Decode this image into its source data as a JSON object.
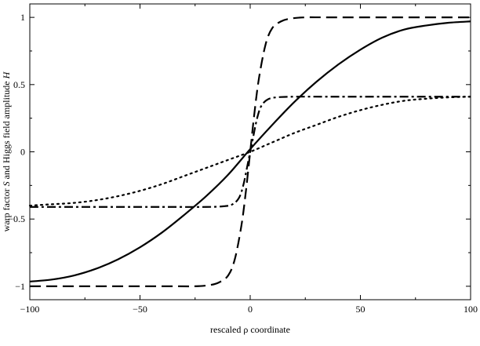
{
  "chart_data": {
    "type": "line",
    "title": "",
    "xlabel": "rescaled ρ coordinate",
    "ylabel_parts": [
      "warp factor ",
      "S",
      " and Higgs field amplitude ",
      "H"
    ],
    "xlim": [
      -100,
      100
    ],
    "ylim": [
      -1.1,
      1.1
    ],
    "x_ticks": [
      -100,
      -50,
      0,
      50,
      100
    ],
    "x_tick_labels": [
      "−100",
      "−50",
      "0",
      "50",
      "100"
    ],
    "y_ticks": [
      -1,
      -0.5,
      0,
      0.5,
      1
    ],
    "y_tick_labels": [
      "−1",
      "−0.5",
      "0",
      "0.5",
      "1"
    ],
    "grid": false,
    "legend": "none",
    "series": [
      {
        "style": "solid",
        "color": "#000000",
        "x": [
          -100,
          -90,
          -80,
          -70,
          -60,
          -50,
          -40,
          -30,
          -20,
          -10,
          0,
          10,
          20,
          30,
          40,
          50,
          60,
          70,
          80,
          90,
          100
        ],
        "y": [
          -0.965,
          -0.95,
          -0.92,
          -0.87,
          -0.8,
          -0.71,
          -0.6,
          -0.47,
          -0.33,
          -0.17,
          0.02,
          0.2,
          0.37,
          0.52,
          0.65,
          0.76,
          0.85,
          0.91,
          0.94,
          0.96,
          0.97
        ]
      },
      {
        "style": "dashed",
        "color": "#000000",
        "x": [
          -100,
          -40,
          -25,
          -18,
          -14,
          -10,
          -7,
          -4,
          -2,
          0,
          2,
          4,
          7,
          10,
          14,
          18,
          25,
          40,
          100
        ],
        "y": [
          -1.0,
          -1.0,
          -1.0,
          -0.99,
          -0.97,
          -0.92,
          -0.8,
          -0.55,
          -0.3,
          0.0,
          0.3,
          0.55,
          0.8,
          0.92,
          0.97,
          0.99,
          1.0,
          1.0,
          1.0
        ]
      },
      {
        "style": "dash-dot",
        "color": "#000000",
        "x": [
          -100,
          -40,
          -20,
          -12,
          -8,
          -5,
          -3,
          -1,
          0,
          1,
          3,
          5,
          8,
          12,
          20,
          40,
          100
        ],
        "y": [
          -0.41,
          -0.41,
          -0.41,
          -0.405,
          -0.39,
          -0.34,
          -0.24,
          -0.08,
          0.0,
          0.08,
          0.24,
          0.34,
          0.39,
          0.405,
          0.41,
          0.41,
          0.41
        ]
      },
      {
        "style": "dotted",
        "color": "#000000",
        "x": [
          -100,
          -90,
          -80,
          -70,
          -60,
          -50,
          -40,
          -30,
          -20,
          -10,
          0,
          10,
          20,
          30,
          40,
          50,
          60,
          70,
          80,
          90,
          100
        ],
        "y": [
          -0.4,
          -0.39,
          -0.38,
          -0.36,
          -0.33,
          -0.29,
          -0.24,
          -0.18,
          -0.12,
          -0.06,
          0.0,
          0.07,
          0.14,
          0.2,
          0.26,
          0.31,
          0.35,
          0.38,
          0.395,
          0.405,
          0.41
        ]
      }
    ]
  }
}
